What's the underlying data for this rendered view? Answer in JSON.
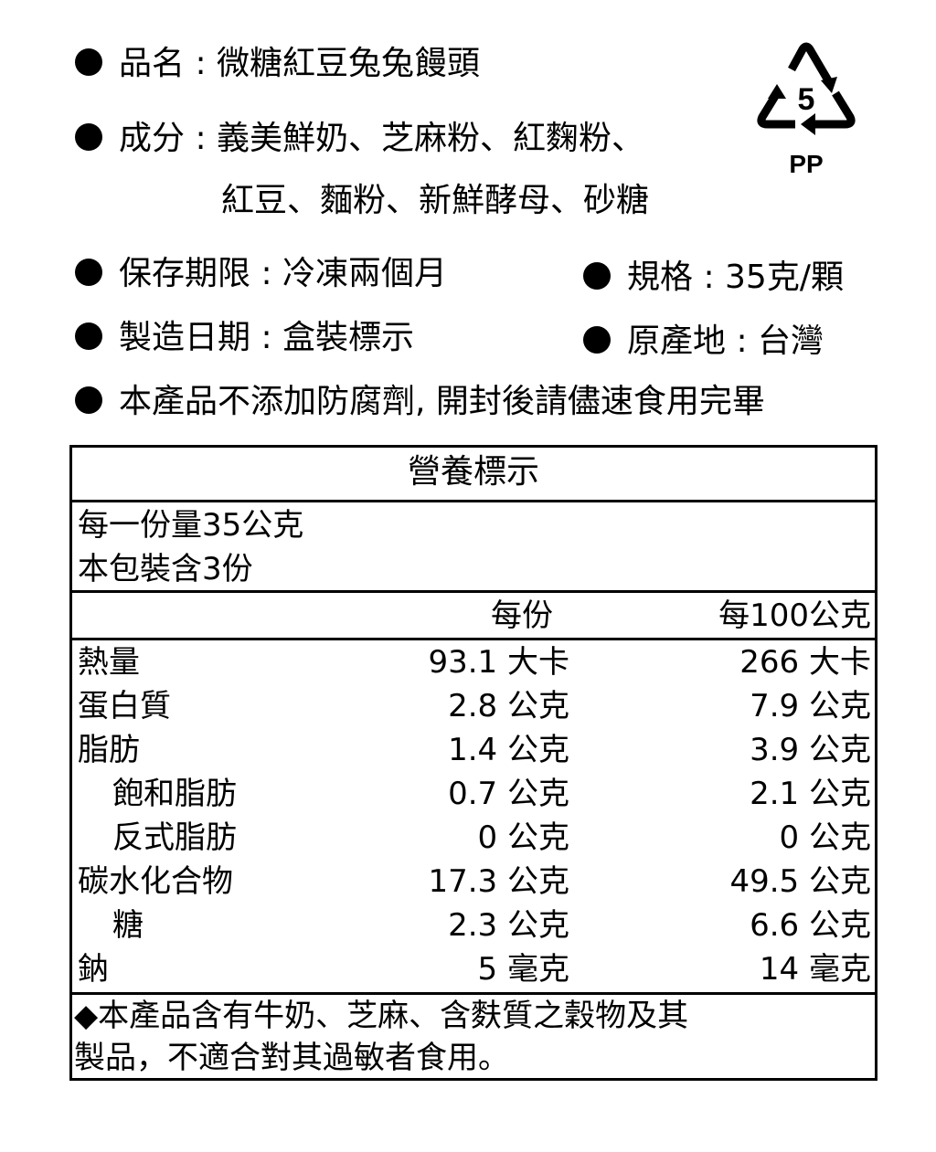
{
  "info": {
    "product_name": {
      "label": "品名",
      "value": "微糖紅豆兔兔饅頭"
    },
    "ingredients": {
      "label": "成分",
      "value_line1": "義美鮮奶、芝麻粉、紅麴粉、",
      "value_line2": "紅豆、麵粉、新鮮酵母、砂糖"
    },
    "shelf_life": {
      "label": "保存期限",
      "value": "冷凍兩個月"
    },
    "spec": {
      "label": "規格",
      "value": "35克/顆"
    },
    "manufacture_date": {
      "label": "製造日期",
      "value": "盒裝標示"
    },
    "origin": {
      "label": "原產地",
      "value": "台灣"
    },
    "notice": "本產品不添加防腐劑, 開封後請儘速食用完畢"
  },
  "recycle": {
    "number": "5",
    "code": "PP",
    "icon": "recycling-triangle-icon"
  },
  "nutrition": {
    "title": "營養標示",
    "serving_size": "每一份量35公克",
    "servings": "本包裝含3份",
    "col_per_serving": "每份",
    "col_per_100g": "每100公克",
    "rows": [
      {
        "name": "熱量",
        "per_serving": "93.1 大卡",
        "per_100g": "266 大卡",
        "indent": false
      },
      {
        "name": "蛋白質",
        "per_serving": "2.8 公克",
        "per_100g": "7.9 公克",
        "indent": false
      },
      {
        "name": "脂肪",
        "per_serving": "1.4 公克",
        "per_100g": "3.9 公克",
        "indent": false
      },
      {
        "name": "飽和脂肪",
        "per_serving": "0.7 公克",
        "per_100g": "2.1 公克",
        "indent": true
      },
      {
        "name": "反式脂肪",
        "per_serving": "0 公克",
        "per_100g": "0 公克",
        "indent": true
      },
      {
        "name": "碳水化合物",
        "per_serving": "17.3 公克",
        "per_100g": "49.5 公克",
        "indent": false
      },
      {
        "name": "糖",
        "per_serving": "2.3 公克",
        "per_100g": "6.6 公克",
        "indent": true
      },
      {
        "name": "鈉",
        "per_serving": "5 毫克",
        "per_100g": "14 毫克",
        "indent": false
      }
    ],
    "allergen_line1": "◆本產品含有牛奶、芝麻、含麩質之穀物及其",
    "allergen_line2": "製品，不適合對其過敏者食用。"
  }
}
